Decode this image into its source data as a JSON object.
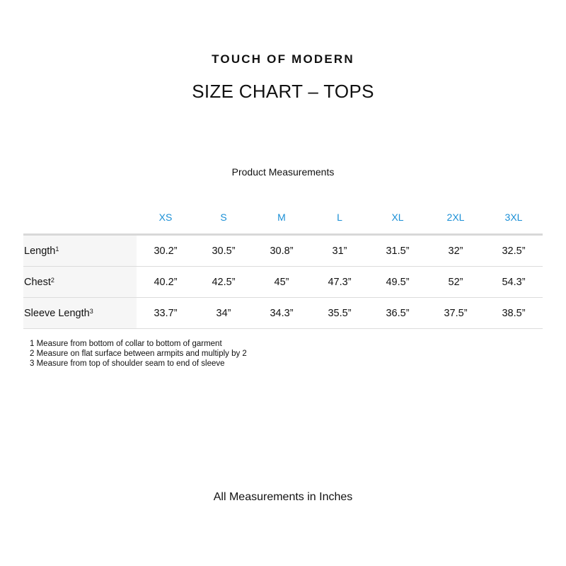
{
  "brand": "TOUCH OF MODERN",
  "title": "SIZE CHART – TOPS",
  "subtitle": "Product Measurements",
  "table": {
    "sizes": [
      "XS",
      "S",
      "M",
      "L",
      "XL",
      "2XL",
      "3XL"
    ],
    "rows": [
      {
        "label": "Length",
        "note": "1",
        "values": [
          "30.2”",
          "30.5”",
          "30.8”",
          "31”",
          "31.5”",
          "32”",
          "32.5”"
        ]
      },
      {
        "label": "Chest",
        "note": "2",
        "values": [
          "40.2”",
          "42.5”",
          "45”",
          "47.3”",
          "49.5”",
          "52”",
          "54.3”"
        ]
      },
      {
        "label": "Sleeve Length",
        "note": "3",
        "values": [
          "33.7”",
          "34”",
          "34.3”",
          "35.5”",
          "36.5”",
          "37.5”",
          "38.5”"
        ]
      }
    ]
  },
  "notes": [
    "1 Measure from bottom of collar to bottom of garment",
    "2 Measure on flat surface between armpits and multiply by 2",
    "3 Measure from top of shoulder seam to end of sleeve"
  ],
  "footer": "All Measurements in Inches",
  "colors": {
    "size_header": "#1a8fd6",
    "label_bg": "#f6f6f6"
  }
}
